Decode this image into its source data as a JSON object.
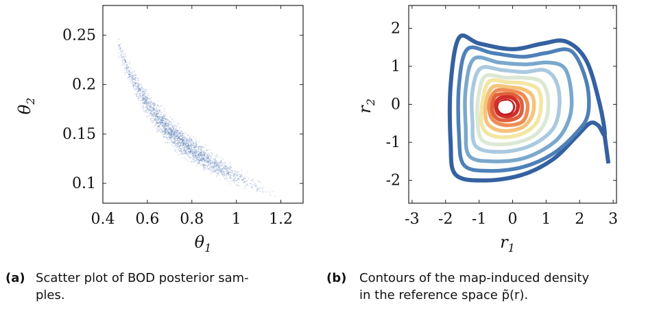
{
  "chart_data": [
    {
      "type": "scatter",
      "xlabel": "θ1",
      "ylabel": "θ2",
      "xlim": [
        0.4,
        1.3
      ],
      "ylim": [
        0.08,
        0.28
      ],
      "xticks": [
        "0.4",
        "0.6",
        "0.8",
        "1",
        "1.2"
      ],
      "xtick_values": [
        0.4,
        0.6,
        0.8,
        1.0,
        1.2
      ],
      "yticks": [
        "0.1",
        "0.15",
        "0.2",
        "0.25"
      ],
      "ytick_values": [
        0.1,
        0.15,
        0.2,
        0.25
      ],
      "color": "#3a63a8",
      "curve": [
        {
          "x": 0.47,
          "y": 0.238
        },
        {
          "x": 0.52,
          "y": 0.212
        },
        {
          "x": 0.58,
          "y": 0.187
        },
        {
          "x": 0.64,
          "y": 0.168
        },
        {
          "x": 0.7,
          "y": 0.153
        },
        {
          "x": 0.76,
          "y": 0.141
        },
        {
          "x": 0.82,
          "y": 0.131
        },
        {
          "x": 0.88,
          "y": 0.122
        },
        {
          "x": 0.95,
          "y": 0.113
        },
        {
          "x": 1.03,
          "y": 0.104
        },
        {
          "x": 1.1,
          "y": 0.097
        },
        {
          "x": 1.17,
          "y": 0.09
        },
        {
          "x": 1.21,
          "y": 0.087
        }
      ],
      "caption_tag": "(a)",
      "caption_lines": [
        "Scatter plot of BOD posterior sam-",
        "ples."
      ]
    },
    {
      "type": "contour",
      "xlabel": "r1",
      "ylabel": "r2",
      "xlim": [
        -3.1,
        3.1
      ],
      "ylim": [
        -2.6,
        2.6
      ],
      "xticks": [
        "-3",
        "-2",
        "-1",
        "0",
        "1",
        "2",
        "3"
      ],
      "xtick_values": [
        -3,
        -2,
        -1,
        0,
        1,
        2,
        3
      ],
      "yticks": [
        "-2",
        "-1",
        "0",
        "1",
        "2"
      ],
      "ytick_values": [
        -2,
        -1,
        0,
        1,
        2
      ],
      "levels": [
        {
          "color": "#3461a0",
          "points": [
            [
              -1.6,
              1.75
            ],
            [
              -1.0,
              1.6
            ],
            [
              0.0,
              1.45
            ],
            [
              0.9,
              1.6
            ],
            [
              1.6,
              1.65
            ],
            [
              2.2,
              1.15
            ],
            [
              2.6,
              0.0
            ],
            [
              2.75,
              -0.8
            ],
            [
              2.55,
              -0.55
            ],
            [
              2.3,
              -0.5
            ],
            [
              1.9,
              -0.85
            ],
            [
              1.2,
              -1.45
            ],
            [
              0.3,
              -1.85
            ],
            [
              -0.8,
              -2.0
            ],
            [
              -1.7,
              -1.85
            ],
            [
              -1.85,
              -1.0
            ],
            [
              -1.85,
              0.5
            ]
          ],
          "tail": [
            [
              2.75,
              -0.85
            ],
            [
              2.85,
              -1.5
            ]
          ]
        },
        {
          "color": "#4e80b8",
          "points": [
            [
              -1.35,
              1.45
            ],
            [
              -0.6,
              1.35
            ],
            [
              0.3,
              1.25
            ],
            [
              1.0,
              1.35
            ],
            [
              1.75,
              1.4
            ],
            [
              2.2,
              0.6
            ],
            [
              2.25,
              -0.25
            ],
            [
              1.9,
              -0.75
            ],
            [
              1.2,
              -1.3
            ],
            [
              0.3,
              -1.65
            ],
            [
              -0.7,
              -1.75
            ],
            [
              -1.45,
              -1.6
            ],
            [
              -1.6,
              -0.8
            ],
            [
              -1.6,
              0.5
            ]
          ]
        },
        {
          "color": "#7aa8cc",
          "points": [
            [
              -1.15,
              1.2
            ],
            [
              -0.4,
              1.1
            ],
            [
              0.4,
              1.05
            ],
            [
              1.05,
              1.1
            ],
            [
              1.55,
              0.95
            ],
            [
              1.75,
              0.3
            ],
            [
              1.7,
              -0.35
            ],
            [
              1.3,
              -0.95
            ],
            [
              0.4,
              -1.4
            ],
            [
              -0.6,
              -1.5
            ],
            [
              -1.3,
              -1.35
            ],
            [
              -1.4,
              -0.6
            ],
            [
              -1.4,
              0.4
            ]
          ]
        },
        {
          "color": "#a9c9df",
          "points": [
            [
              -0.95,
              0.95
            ],
            [
              -0.3,
              0.9
            ],
            [
              0.35,
              0.85
            ],
            [
              0.95,
              0.9
            ],
            [
              1.3,
              0.6
            ],
            [
              1.4,
              0.0
            ],
            [
              1.2,
              -0.65
            ],
            [
              0.5,
              -1.1
            ],
            [
              -0.4,
              -1.25
            ],
            [
              -1.1,
              -1.1
            ],
            [
              -1.2,
              -0.45
            ],
            [
              -1.2,
              0.35
            ]
          ]
        },
        {
          "color": "#dde8d4",
          "points": [
            [
              -0.8,
              0.75
            ],
            [
              -0.2,
              0.7
            ],
            [
              0.35,
              0.7
            ],
            [
              0.85,
              0.6
            ],
            [
              1.05,
              0.2
            ],
            [
              1.0,
              -0.4
            ],
            [
              0.6,
              -0.85
            ],
            [
              -0.2,
              -1.05
            ],
            [
              -0.9,
              -0.95
            ],
            [
              -1.05,
              -0.35
            ],
            [
              -1.0,
              0.3
            ]
          ]
        },
        {
          "color": "#f2e6a2",
          "points": [
            [
              -0.7,
              0.6
            ],
            [
              -0.15,
              0.58
            ],
            [
              0.35,
              0.55
            ],
            [
              0.75,
              0.4
            ],
            [
              0.85,
              0.0
            ],
            [
              0.7,
              -0.5
            ],
            [
              0.2,
              -0.8
            ],
            [
              -0.5,
              -0.85
            ],
            [
              -0.9,
              -0.6
            ],
            [
              -0.9,
              0.05
            ]
          ]
        },
        {
          "color": "#f6c37a",
          "points": [
            [
              -0.6,
              0.45
            ],
            [
              -0.1,
              0.45
            ],
            [
              0.3,
              0.4
            ],
            [
              0.6,
              0.2
            ],
            [
              0.6,
              -0.25
            ],
            [
              0.3,
              -0.6
            ],
            [
              -0.3,
              -0.7
            ],
            [
              -0.75,
              -0.5
            ],
            [
              -0.8,
              0.0
            ]
          ]
        },
        {
          "color": "#ee8d55",
          "points": [
            [
              -0.5,
              0.35
            ],
            [
              -0.05,
              0.35
            ],
            [
              0.3,
              0.25
            ],
            [
              0.45,
              -0.05
            ],
            [
              0.3,
              -0.45
            ],
            [
              -0.2,
              -0.55
            ],
            [
              -0.6,
              -0.4
            ],
            [
              -0.7,
              0.0
            ]
          ]
        },
        {
          "color": "#e15f3c",
          "points": [
            [
              -0.45,
              0.25
            ],
            [
              0.0,
              0.25
            ],
            [
              0.25,
              0.1
            ],
            [
              0.25,
              -0.25
            ],
            [
              0.0,
              -0.4
            ],
            [
              -0.4,
              -0.4
            ],
            [
              -0.6,
              -0.2
            ],
            [
              -0.58,
              0.1
            ]
          ]
        },
        {
          "color": "#cf3028",
          "points": [
            [
              -0.4,
              0.15
            ],
            [
              -0.05,
              0.18
            ],
            [
              0.15,
              0.02
            ],
            [
              0.1,
              -0.22
            ],
            [
              -0.15,
              -0.32
            ],
            [
              -0.42,
              -0.25
            ],
            [
              -0.5,
              -0.05
            ]
          ]
        },
        {
          "color": "#c02026",
          "points": [
            [
              -0.35,
              0.05
            ],
            [
              -0.1,
              0.08
            ],
            [
              0.02,
              -0.05
            ],
            [
              -0.05,
              -0.2
            ],
            [
              -0.25,
              -0.24
            ],
            [
              -0.4,
              -0.15
            ]
          ]
        },
        {
          "color": "#ffffff",
          "points": [
            [
              -0.33,
              0.02
            ],
            [
              -0.12,
              0.04
            ],
            [
              -0.04,
              -0.06
            ],
            [
              -0.1,
              -0.17
            ],
            [
              -0.27,
              -0.19
            ],
            [
              -0.37,
              -0.1
            ]
          ]
        }
      ],
      "caption_tag": "(b)",
      "caption_lines": [
        "Contours of the map-induced density",
        "in the reference space p̃(r)."
      ]
    }
  ]
}
